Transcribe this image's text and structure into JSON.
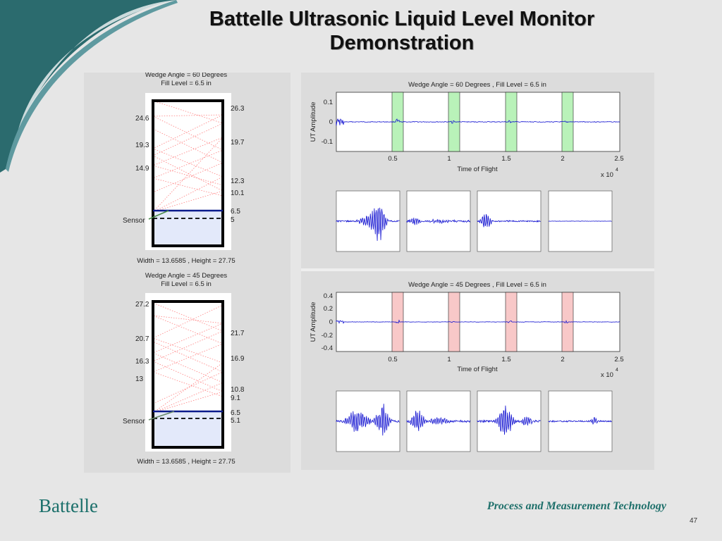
{
  "slide": {
    "title_line1": "Battelle Ultrasonic Liquid Level Monitor",
    "title_line2": "Demonstration",
    "footer_logo": "Battelle",
    "footer_text": "Process and Measurement Technology",
    "page_number": "47"
  },
  "tanks": [
    {
      "title1": "Wedge Angle = 60 Degrees",
      "title2": "Fill Level = 6.5 in",
      "left_labels": [
        "24.6",
        "19.3",
        "14.9"
      ],
      "right_labels": [
        "26.3",
        "19.7",
        "12.3",
        "10.1",
        "6.5",
        "5"
      ],
      "sensor_label": "Sensor",
      "caption": "Width = 13.6585 , Height = 27.75"
    },
    {
      "title1": "Wedge Angle = 45 Degrees",
      "title2": "Fill Level = 6.5 in",
      "left_labels": [
        "27.2",
        "20.7",
        "16.3",
        "13"
      ],
      "right_labels": [
        "21.7",
        "16.9",
        "10.8",
        "9.1",
        "6.5",
        "5.1"
      ],
      "sensor_label": "Sensor",
      "caption": "Width = 13.6585 , Height = 27.75"
    }
  ],
  "plots": [
    {
      "title": "Wedge Angle = 60 Degrees , Fill Level = 6.5 in",
      "ylabel": "UT Amplitude",
      "xlabel": "Time of Flight",
      "xscale": "x 10",
      "xscale_exp": "4",
      "yticks": [
        "0.1",
        "0",
        "-0.1"
      ],
      "xticks": [
        "0.5",
        "1",
        "1.5",
        "2",
        "2.5"
      ],
      "highlight_color": "#b9f2b9"
    },
    {
      "title": "Wedge Angle = 45 Degrees , Fill Level = 6.5 in",
      "ylabel": "UT Amplitude",
      "xlabel": "Time of Flight",
      "xscale": "x 10",
      "xscale_exp": "4",
      "yticks": [
        "0.4",
        "0.2",
        "0",
        "-0.2",
        "-0.4"
      ],
      "xticks": [
        "0.5",
        "1",
        "1.5",
        "2",
        "2.5"
      ],
      "highlight_color": "#f8c8c8"
    }
  ]
}
